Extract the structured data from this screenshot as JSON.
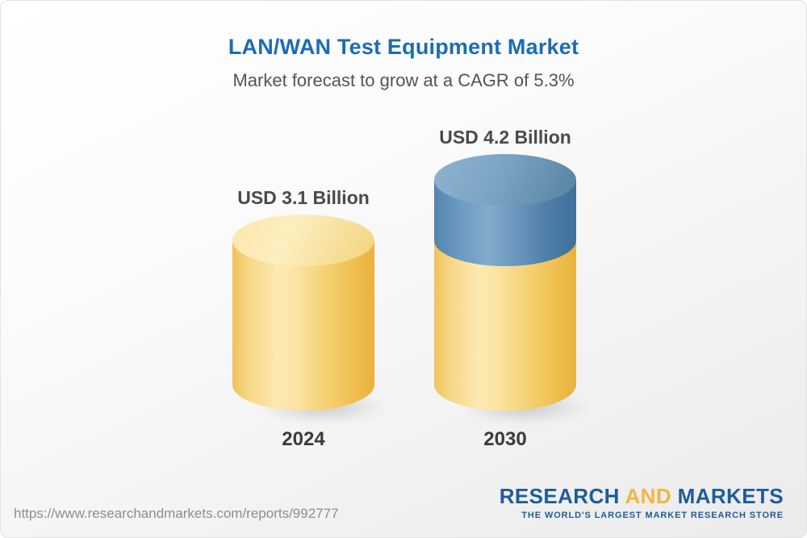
{
  "header": {
    "title": "LAN/WAN Test Equipment Market",
    "subtitle": "Market forecast to grow at a CAGR of 5.3%"
  },
  "chart_data": {
    "type": "bar",
    "subtype": "3d-cylinder-stacked",
    "title": "LAN/WAN Test Equipment Market",
    "subtitle": "Market forecast to grow at a CAGR of 5.3%",
    "cagr_percent": 5.3,
    "categories": [
      "2024",
      "2030"
    ],
    "values": [
      3.1,
      4.2
    ],
    "unit": "USD Billion",
    "value_labels": [
      "USD 3.1 Billion",
      "USD 4.2 Billion"
    ],
    "colors": {
      "base_segment": "#F5CB62",
      "growth_segment": "#4E7EA9"
    },
    "axes": "none",
    "legend": "none",
    "gridlines": false
  },
  "footer": {
    "url": "https://www.researchandmarkets.com/reports/992777",
    "logo": {
      "word1": "RESEARCH",
      "word2": "AND",
      "word3": "MARKETS",
      "tagline": "THE WORLD'S LARGEST MARKET RESEARCH STORE"
    }
  }
}
